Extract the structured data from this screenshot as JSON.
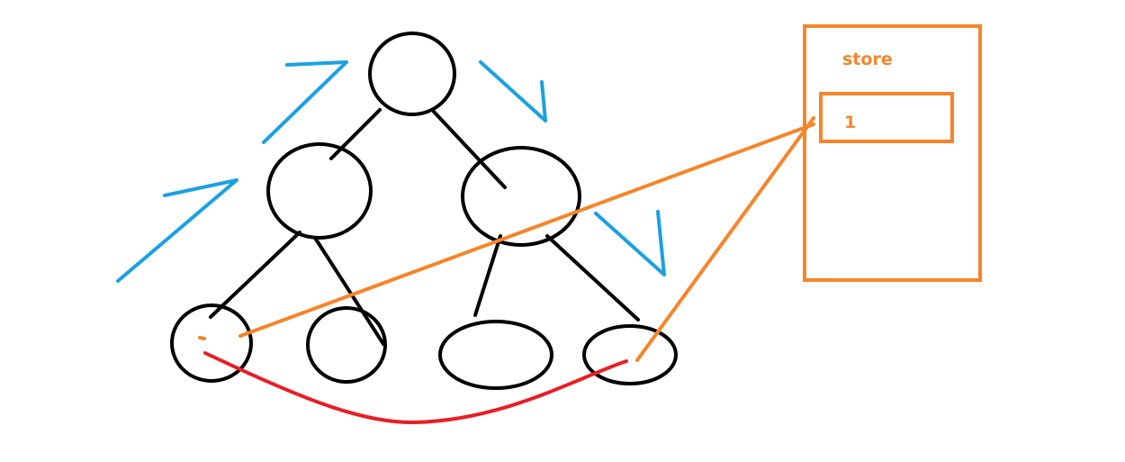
{
  "store": {
    "title": "store",
    "value": "1"
  },
  "colors": {
    "tree": "#000000",
    "traversal_arrows": "#1ba1e2",
    "store_link": "#f5852a",
    "leaf_link": "#e81e25",
    "background": "#ffffff"
  },
  "icons": {
    "traversal": "arrow-icon"
  }
}
